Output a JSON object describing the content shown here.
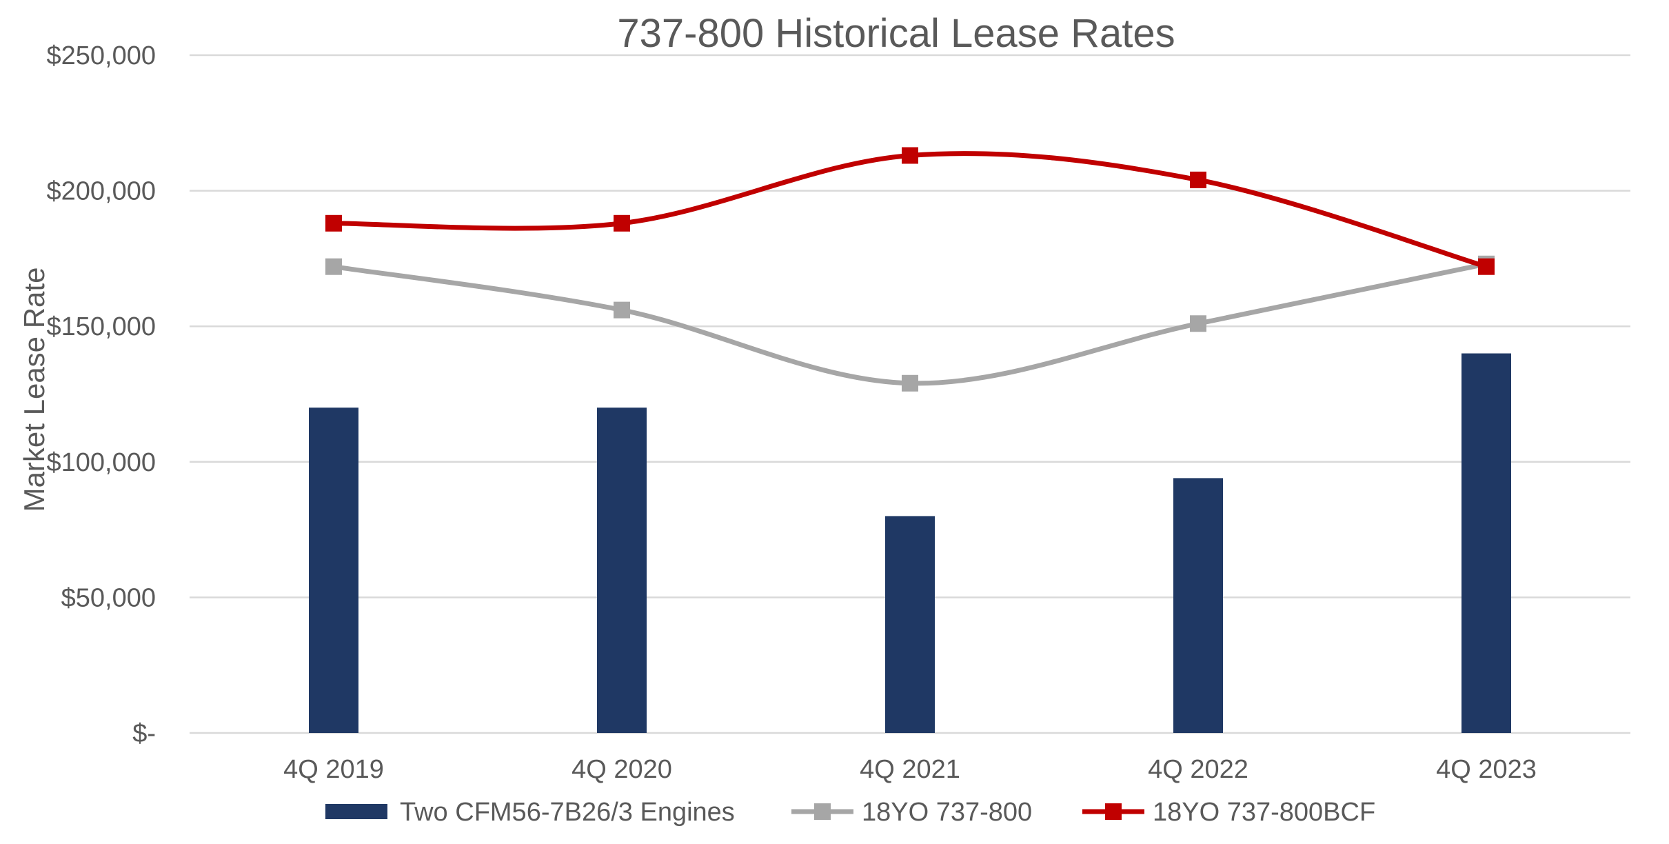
{
  "chart_data": {
    "type": "bar",
    "title": "737-800 Historical Lease Rates",
    "xlabel": "",
    "ylabel": "Market Lease Rate",
    "ylim": [
      0,
      250000
    ],
    "yticks": [
      0,
      50000,
      100000,
      150000,
      200000,
      250000
    ],
    "ytick_labels": [
      "$-",
      "$50,000",
      "$100,000",
      "$150,000",
      "$200,000",
      "$250,000"
    ],
    "categories": [
      "4Q 2019",
      "4Q 2020",
      "4Q 2021",
      "4Q 2022",
      "4Q 2023"
    ],
    "grid": true,
    "legend_position": "bottom",
    "series": [
      {
        "name": "Two CFM56-7B26/3 Engines",
        "type": "bar",
        "color": "#1f3864",
        "values": [
          120000,
          120000,
          80000,
          94000,
          140000
        ]
      },
      {
        "name": "18YO 737-800",
        "type": "line",
        "color": "#a6a6a6",
        "marker": "square",
        "values": [
          172000,
          156000,
          129000,
          151000,
          173000
        ]
      },
      {
        "name": "18YO 737-800BCF",
        "type": "line",
        "color": "#c00000",
        "marker": "square",
        "values": [
          188000,
          188000,
          213000,
          204000,
          172000
        ]
      }
    ]
  }
}
